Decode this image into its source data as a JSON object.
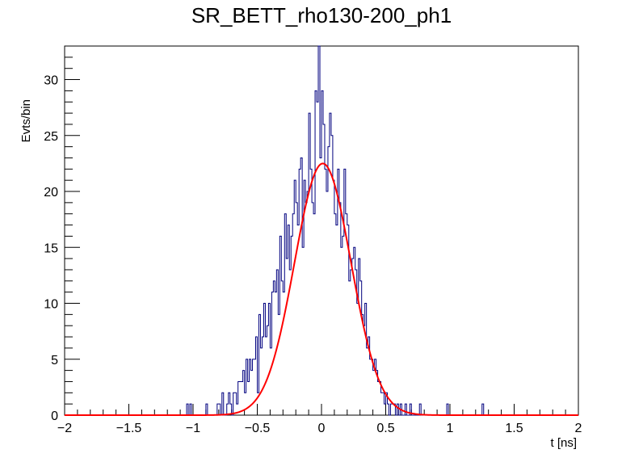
{
  "chart_data": {
    "type": "histogram",
    "title": "SR_BETT_rho130-200_ph1",
    "xlabel": "t [ns]",
    "ylabel": "Evts/bin",
    "xlim": [
      -2,
      2
    ],
    "ylim": [
      0,
      33
    ],
    "x_ticks": [
      -2,
      -1.5,
      -1,
      -0.5,
      0,
      0.5,
      1,
      1.5,
      2
    ],
    "x_tick_labels": [
      "−2",
      "−1.5",
      "−1",
      "−0.5",
      "0",
      "0.5",
      "1",
      "1.5",
      "2"
    ],
    "y_ticks": [
      0,
      5,
      10,
      15,
      20,
      25,
      30
    ],
    "y_tick_labels": [
      "0",
      "5",
      "10",
      "15",
      "20",
      "25",
      "30"
    ],
    "grid": false,
    "bin_width": 0.0125,
    "bins_start": -1.05,
    "counts": [
      1,
      0,
      1,
      0,
      0,
      0,
      0,
      0,
      0,
      0,
      0,
      0,
      1,
      0,
      0,
      0,
      0,
      0,
      0,
      1,
      1,
      0,
      2,
      0,
      0,
      1,
      2,
      1,
      0,
      2,
      2,
      1,
      3,
      3,
      3,
      4,
      2,
      5,
      3,
      5,
      4,
      5,
      5,
      7,
      2,
      9,
      6,
      7,
      10,
      7,
      8,
      10,
      6,
      11,
      12,
      11,
      13,
      9,
      16,
      12,
      11,
      18,
      14,
      17,
      13,
      16,
      18,
      21,
      19,
      17,
      22,
      23,
      15,
      21,
      19,
      20,
      27,
      22,
      19,
      18,
      29,
      28,
      33,
      23,
      29,
      26,
      22,
      20,
      24,
      27,
      25,
      21,
      18,
      17,
      22,
      19,
      15,
      16,
      22,
      18,
      17,
      12,
      13,
      14,
      15,
      13,
      10,
      14,
      12,
      9,
      8,
      10,
      6,
      7,
      5,
      5,
      4,
      5,
      4,
      3,
      3,
      2,
      2,
      1,
      2,
      1,
      0,
      1,
      1,
      1,
      0,
      1,
      0,
      1,
      0,
      0,
      1,
      0,
      0,
      1,
      0,
      0,
      0,
      0,
      0,
      1,
      0,
      0,
      0,
      0,
      0,
      0,
      0,
      0,
      0,
      0,
      0,
      0,
      0,
      0,
      0,
      0,
      1,
      0,
      0,
      0,
      0,
      0,
      0,
      0,
      0,
      0,
      0,
      0,
      0,
      0,
      0,
      0,
      0,
      0,
      0,
      0,
      0,
      0,
      1
    ],
    "series": [
      {
        "type": "histogram",
        "color": "#00007f"
      },
      {
        "type": "gaussian-fit",
        "color": "#ff0000",
        "amplitude": 22.5,
        "mean": 0.01,
        "sigma": 0.22
      }
    ]
  }
}
